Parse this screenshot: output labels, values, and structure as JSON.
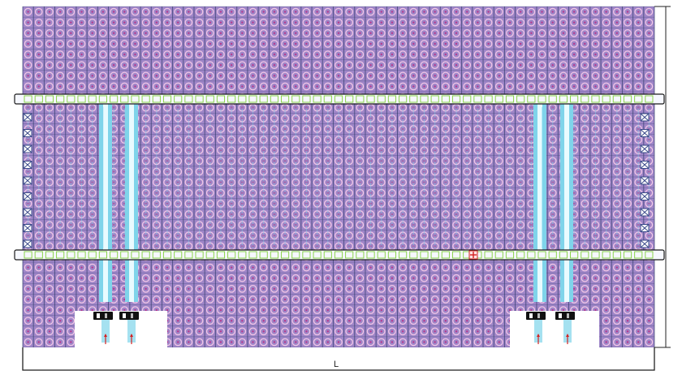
{
  "diagram": {
    "dimension_label": "L",
    "colors": {
      "cell_fill": "#9f86c8",
      "cell_ring": "#f2c7e6",
      "cell_center": "#b43a8f",
      "grid_line": "#2f3a6a",
      "aisle": "#7fd4ea",
      "aisle_core": "#e9fbff",
      "rail_fill": "#f6f8ff",
      "rail_stroke": "#1a1a1a",
      "rail_marker": "#8bd34a",
      "crossed_box": "#3a4a8a",
      "shuttle": "#111111",
      "marker_red": "#d42020"
    },
    "icons": [
      "crossed-box-icon",
      "shuttle-icon",
      "red-cross-marker-icon"
    ]
  }
}
